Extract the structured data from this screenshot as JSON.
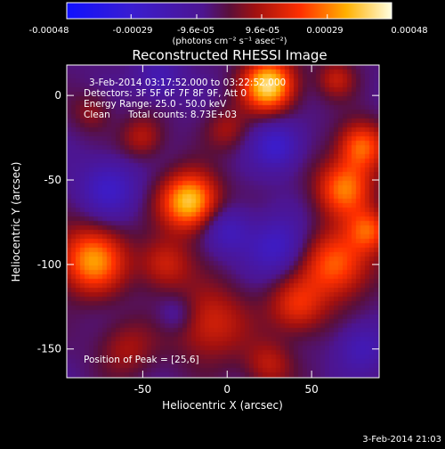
{
  "colorbar": {
    "tick_labels": [
      "-0.00048",
      "-0.00029",
      "-9.6e-05",
      "9.6e-05",
      "0.00029",
      "0.00048"
    ],
    "tick_values": [
      -0.00048,
      -0.00029,
      -9.6e-05,
      9.6e-05,
      0.00029,
      0.00048
    ],
    "range": [
      -0.00048,
      0.00048
    ],
    "units": "(photons cm⁻² s⁻¹ asec⁻²)"
  },
  "annotations": {
    "time_range": "3-Feb-2014 03:17:52.000 to 03:22:52.000",
    "detectors": "Detectors: 3F 5F 6F 7F 8F 9F, Att 0",
    "energy": "Energy Range: 25.0 - 50.0 keV",
    "method": "Clean",
    "counts": "Total counts: 8.73E+03",
    "peak": "Position of Peak = [25,6]"
  },
  "footer": {
    "date": "3-Feb-2014 21:03"
  },
  "chart_data": {
    "type": "heatmap",
    "title": "Reconstructed RHESSI Image",
    "xlabel": "Heliocentric X (arcsec)",
    "ylabel": "Heliocentric Y (arcsec)",
    "xlim": [
      -95,
      90
    ],
    "ylim": [
      -167,
      18
    ],
    "x_ticks": [
      -50,
      0,
      50
    ],
    "y_ticks": [
      0,
      -50,
      -100,
      -150
    ],
    "peak": [
      25,
      6
    ],
    "sources": [
      {
        "x": 25,
        "y": 6,
        "s": 11,
        "v": 1.0
      },
      {
        "x": -22,
        "y": -63,
        "s": 12,
        "v": 0.95
      },
      {
        "x": -80,
        "y": -98,
        "s": 14,
        "v": 0.78
      },
      {
        "x": -37,
        "y": -100,
        "s": 11,
        "v": 0.42
      },
      {
        "x": 70,
        "y": -55,
        "s": 12,
        "v": 0.7
      },
      {
        "x": 80,
        "y": -30,
        "s": 10,
        "v": 0.65
      },
      {
        "x": 65,
        "y": -100,
        "s": 14,
        "v": 0.68
      },
      {
        "x": 42,
        "y": -125,
        "s": 12,
        "v": 0.5
      },
      {
        "x": -10,
        "y": -135,
        "s": 16,
        "v": 0.45
      },
      {
        "x": -60,
        "y": -150,
        "s": 12,
        "v": 0.3
      },
      {
        "x": -50,
        "y": -25,
        "s": 9,
        "v": 0.35
      },
      {
        "x": -80,
        "y": -10,
        "s": 8,
        "v": 0.25
      },
      {
        "x": 0,
        "y": -20,
        "s": 9,
        "v": 0.28
      },
      {
        "x": 65,
        "y": 10,
        "s": 8,
        "v": 0.35
      },
      {
        "x": 85,
        "y": -80,
        "s": 9,
        "v": 0.55
      },
      {
        "x": 25,
        "y": -160,
        "s": 10,
        "v": 0.35
      },
      {
        "x": 30,
        "y": -30,
        "s": 10,
        "v": -0.45
      },
      {
        "x": -70,
        "y": -55,
        "s": 12,
        "v": -0.4
      },
      {
        "x": 0,
        "y": -80,
        "s": 10,
        "v": -0.35
      },
      {
        "x": 30,
        "y": -90,
        "s": 12,
        "v": -0.4
      },
      {
        "x": 80,
        "y": -150,
        "s": 10,
        "v": -0.3
      },
      {
        "x": -40,
        "y": 10,
        "s": 9,
        "v": -0.3
      },
      {
        "x": -30,
        "y": -130,
        "s": 8,
        "v": -0.25
      }
    ]
  }
}
